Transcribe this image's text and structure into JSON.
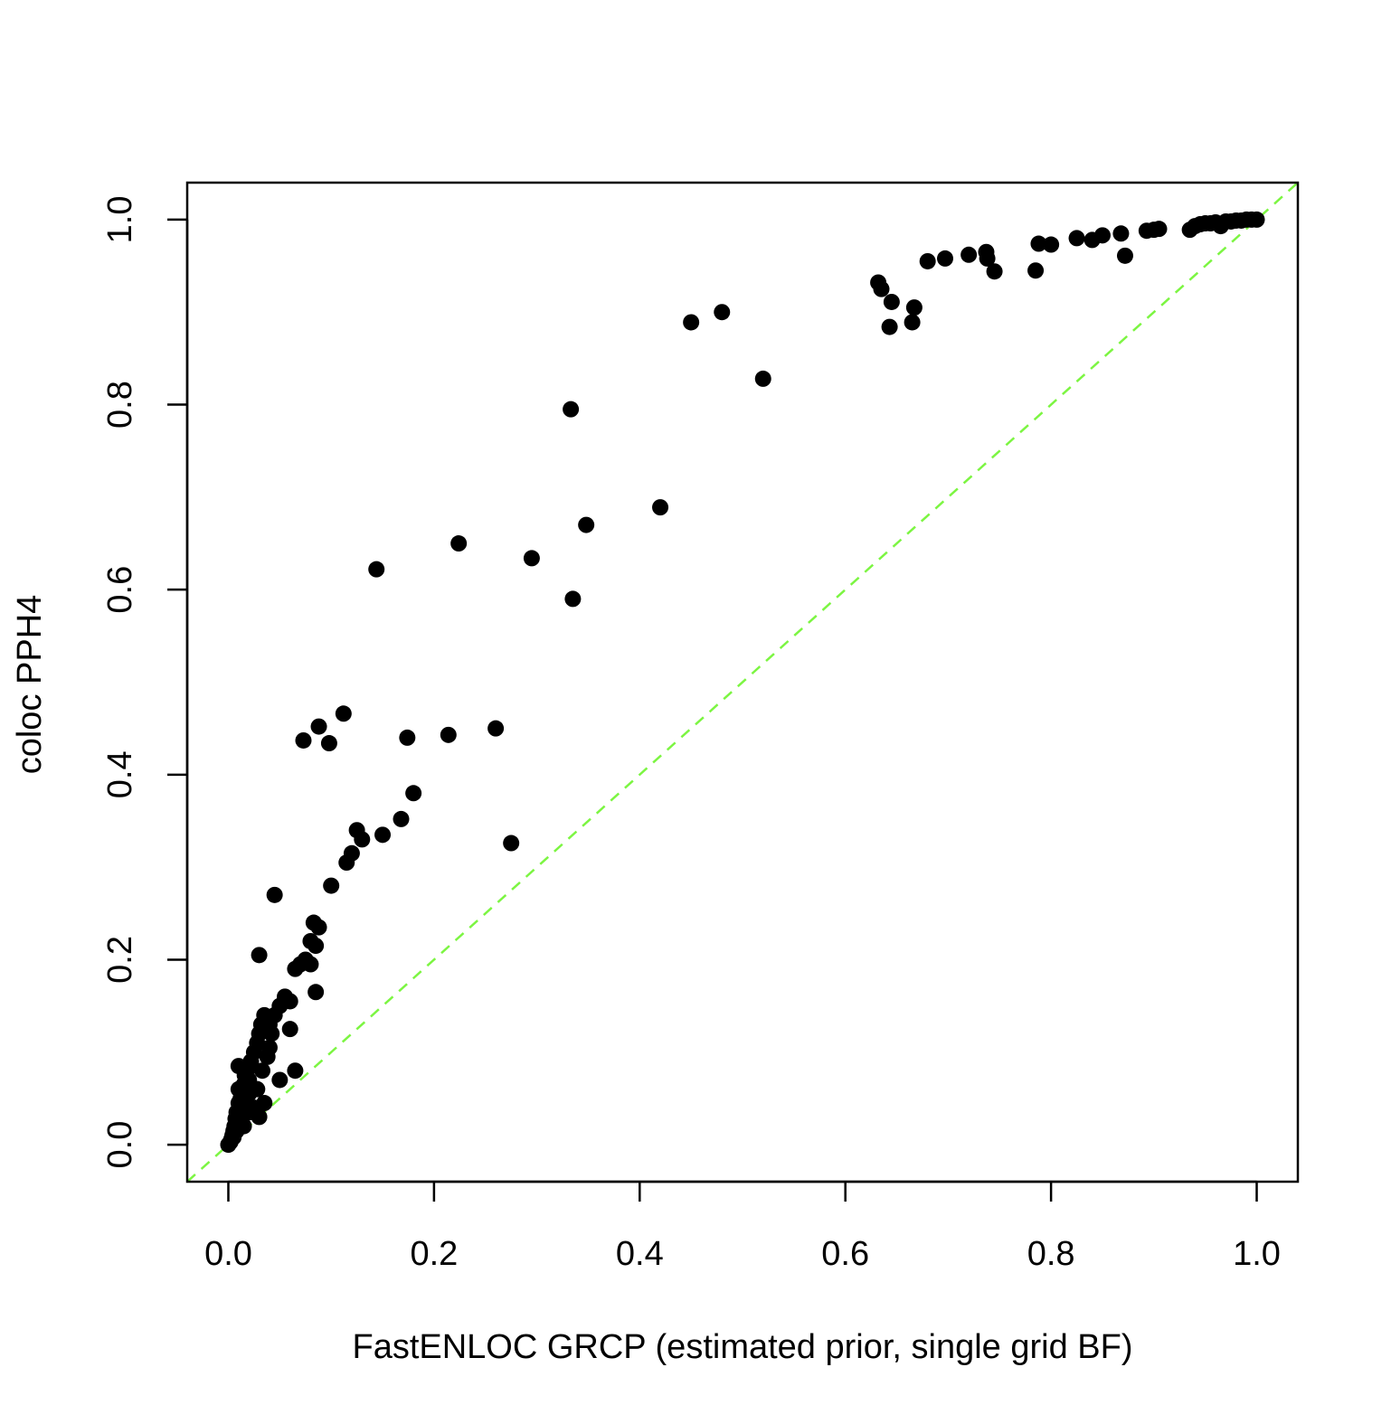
{
  "chart_data": {
    "type": "scatter",
    "title": "",
    "xlabel": "FastENLOC GRCP (estimated prior, single grid BF)",
    "ylabel": "coloc PPH4",
    "xlim": [
      -0.04,
      1.04
    ],
    "ylim": [
      -0.04,
      1.04
    ],
    "x_ticks": [
      "0.0",
      "0.2",
      "0.4",
      "0.6",
      "0.8",
      "1.0"
    ],
    "y_ticks": [
      "0.0",
      "0.2",
      "0.4",
      "0.6",
      "0.8",
      "1.0"
    ],
    "grid": false,
    "point_color": "#000000",
    "reference_line": {
      "slope": 1,
      "intercept": 0,
      "style": "dashed",
      "color": "#7cf542"
    },
    "points": [
      [
        0.0,
        0.0
      ],
      [
        0.002,
        0.003
      ],
      [
        0.003,
        0.006
      ],
      [
        0.004,
        0.01
      ],
      [
        0.005,
        0.015
      ],
      [
        0.006,
        0.02
      ],
      [
        0.007,
        0.028
      ],
      [
        0.008,
        0.035
      ],
      [
        0.01,
        0.045
      ],
      [
        0.01,
        0.06
      ],
      [
        0.012,
        0.05
      ],
      [
        0.015,
        0.065
      ],
      [
        0.016,
        0.075
      ],
      [
        0.018,
        0.08
      ],
      [
        0.02,
        0.07
      ],
      [
        0.02,
        0.055
      ],
      [
        0.022,
        0.09
      ],
      [
        0.025,
        0.1
      ],
      [
        0.028,
        0.11
      ],
      [
        0.03,
        0.12
      ],
      [
        0.032,
        0.13
      ],
      [
        0.035,
        0.14
      ],
      [
        0.04,
        0.13
      ],
      [
        0.042,
        0.12
      ],
      [
        0.045,
        0.14
      ],
      [
        0.05,
        0.15
      ],
      [
        0.055,
        0.16
      ],
      [
        0.06,
        0.155
      ],
      [
        0.06,
        0.125
      ],
      [
        0.065,
        0.19
      ],
      [
        0.07,
        0.195
      ],
      [
        0.075,
        0.2
      ],
      [
        0.08,
        0.195
      ],
      [
        0.08,
        0.22
      ],
      [
        0.083,
        0.24
      ],
      [
        0.085,
        0.215
      ],
      [
        0.088,
        0.235
      ],
      [
        0.085,
        0.165
      ],
      [
        0.045,
        0.27
      ],
      [
        0.03,
        0.205
      ],
      [
        0.05,
        0.07
      ],
      [
        0.065,
        0.08
      ],
      [
        0.035,
        0.045
      ],
      [
        0.03,
        0.03
      ],
      [
        0.015,
        0.02
      ],
      [
        0.02,
        0.035
      ],
      [
        0.025,
        0.04
      ],
      [
        0.012,
        0.03
      ],
      [
        0.008,
        0.015
      ],
      [
        0.005,
        0.008
      ],
      [
        0.018,
        0.045
      ],
      [
        0.028,
        0.06
      ],
      [
        0.033,
        0.08
      ],
      [
        0.038,
        0.095
      ],
      [
        0.04,
        0.105
      ],
      [
        0.01,
        0.085
      ],
      [
        0.1,
        0.28
      ],
      [
        0.115,
        0.305
      ],
      [
        0.12,
        0.315
      ],
      [
        0.125,
        0.34
      ],
      [
        0.13,
        0.33
      ],
      [
        0.15,
        0.335
      ],
      [
        0.168,
        0.352
      ],
      [
        0.18,
        0.38
      ],
      [
        0.073,
        0.437
      ],
      [
        0.088,
        0.452
      ],
      [
        0.098,
        0.434
      ],
      [
        0.112,
        0.466
      ],
      [
        0.174,
        0.44
      ],
      [
        0.214,
        0.443
      ],
      [
        0.26,
        0.45
      ],
      [
        0.275,
        0.326
      ],
      [
        0.144,
        0.622
      ],
      [
        0.224,
        0.65
      ],
      [
        0.295,
        0.634
      ],
      [
        0.335,
        0.59
      ],
      [
        0.348,
        0.67
      ],
      [
        0.42,
        0.689
      ],
      [
        0.333,
        0.795
      ],
      [
        0.45,
        0.889
      ],
      [
        0.48,
        0.9
      ],
      [
        0.52,
        0.828
      ],
      [
        0.632,
        0.932
      ],
      [
        0.635,
        0.925
      ],
      [
        0.645,
        0.911
      ],
      [
        0.643,
        0.884
      ],
      [
        0.665,
        0.889
      ],
      [
        0.667,
        0.905
      ],
      [
        0.68,
        0.955
      ],
      [
        0.697,
        0.958
      ],
      [
        0.72,
        0.962
      ],
      [
        0.737,
        0.965
      ],
      [
        0.738,
        0.958
      ],
      [
        0.745,
        0.944
      ],
      [
        0.785,
        0.945
      ],
      [
        0.788,
        0.974
      ],
      [
        0.8,
        0.973
      ],
      [
        0.825,
        0.98
      ],
      [
        0.84,
        0.978
      ],
      [
        0.85,
        0.983
      ],
      [
        0.868,
        0.985
      ],
      [
        0.872,
        0.961
      ],
      [
        0.893,
        0.988
      ],
      [
        0.9,
        0.989
      ],
      [
        0.905,
        0.99
      ],
      [
        0.935,
        0.989
      ],
      [
        0.94,
        0.993
      ],
      [
        0.945,
        0.995
      ],
      [
        0.95,
        0.996
      ],
      [
        0.955,
        0.996
      ],
      [
        0.96,
        0.997
      ],
      [
        0.965,
        0.993
      ],
      [
        0.97,
        0.998
      ],
      [
        0.975,
        0.998
      ],
      [
        0.98,
        0.999
      ],
      [
        0.985,
        0.999
      ],
      [
        0.99,
        1.0
      ],
      [
        0.995,
        1.0
      ],
      [
        1.0,
        1.0
      ]
    ]
  }
}
